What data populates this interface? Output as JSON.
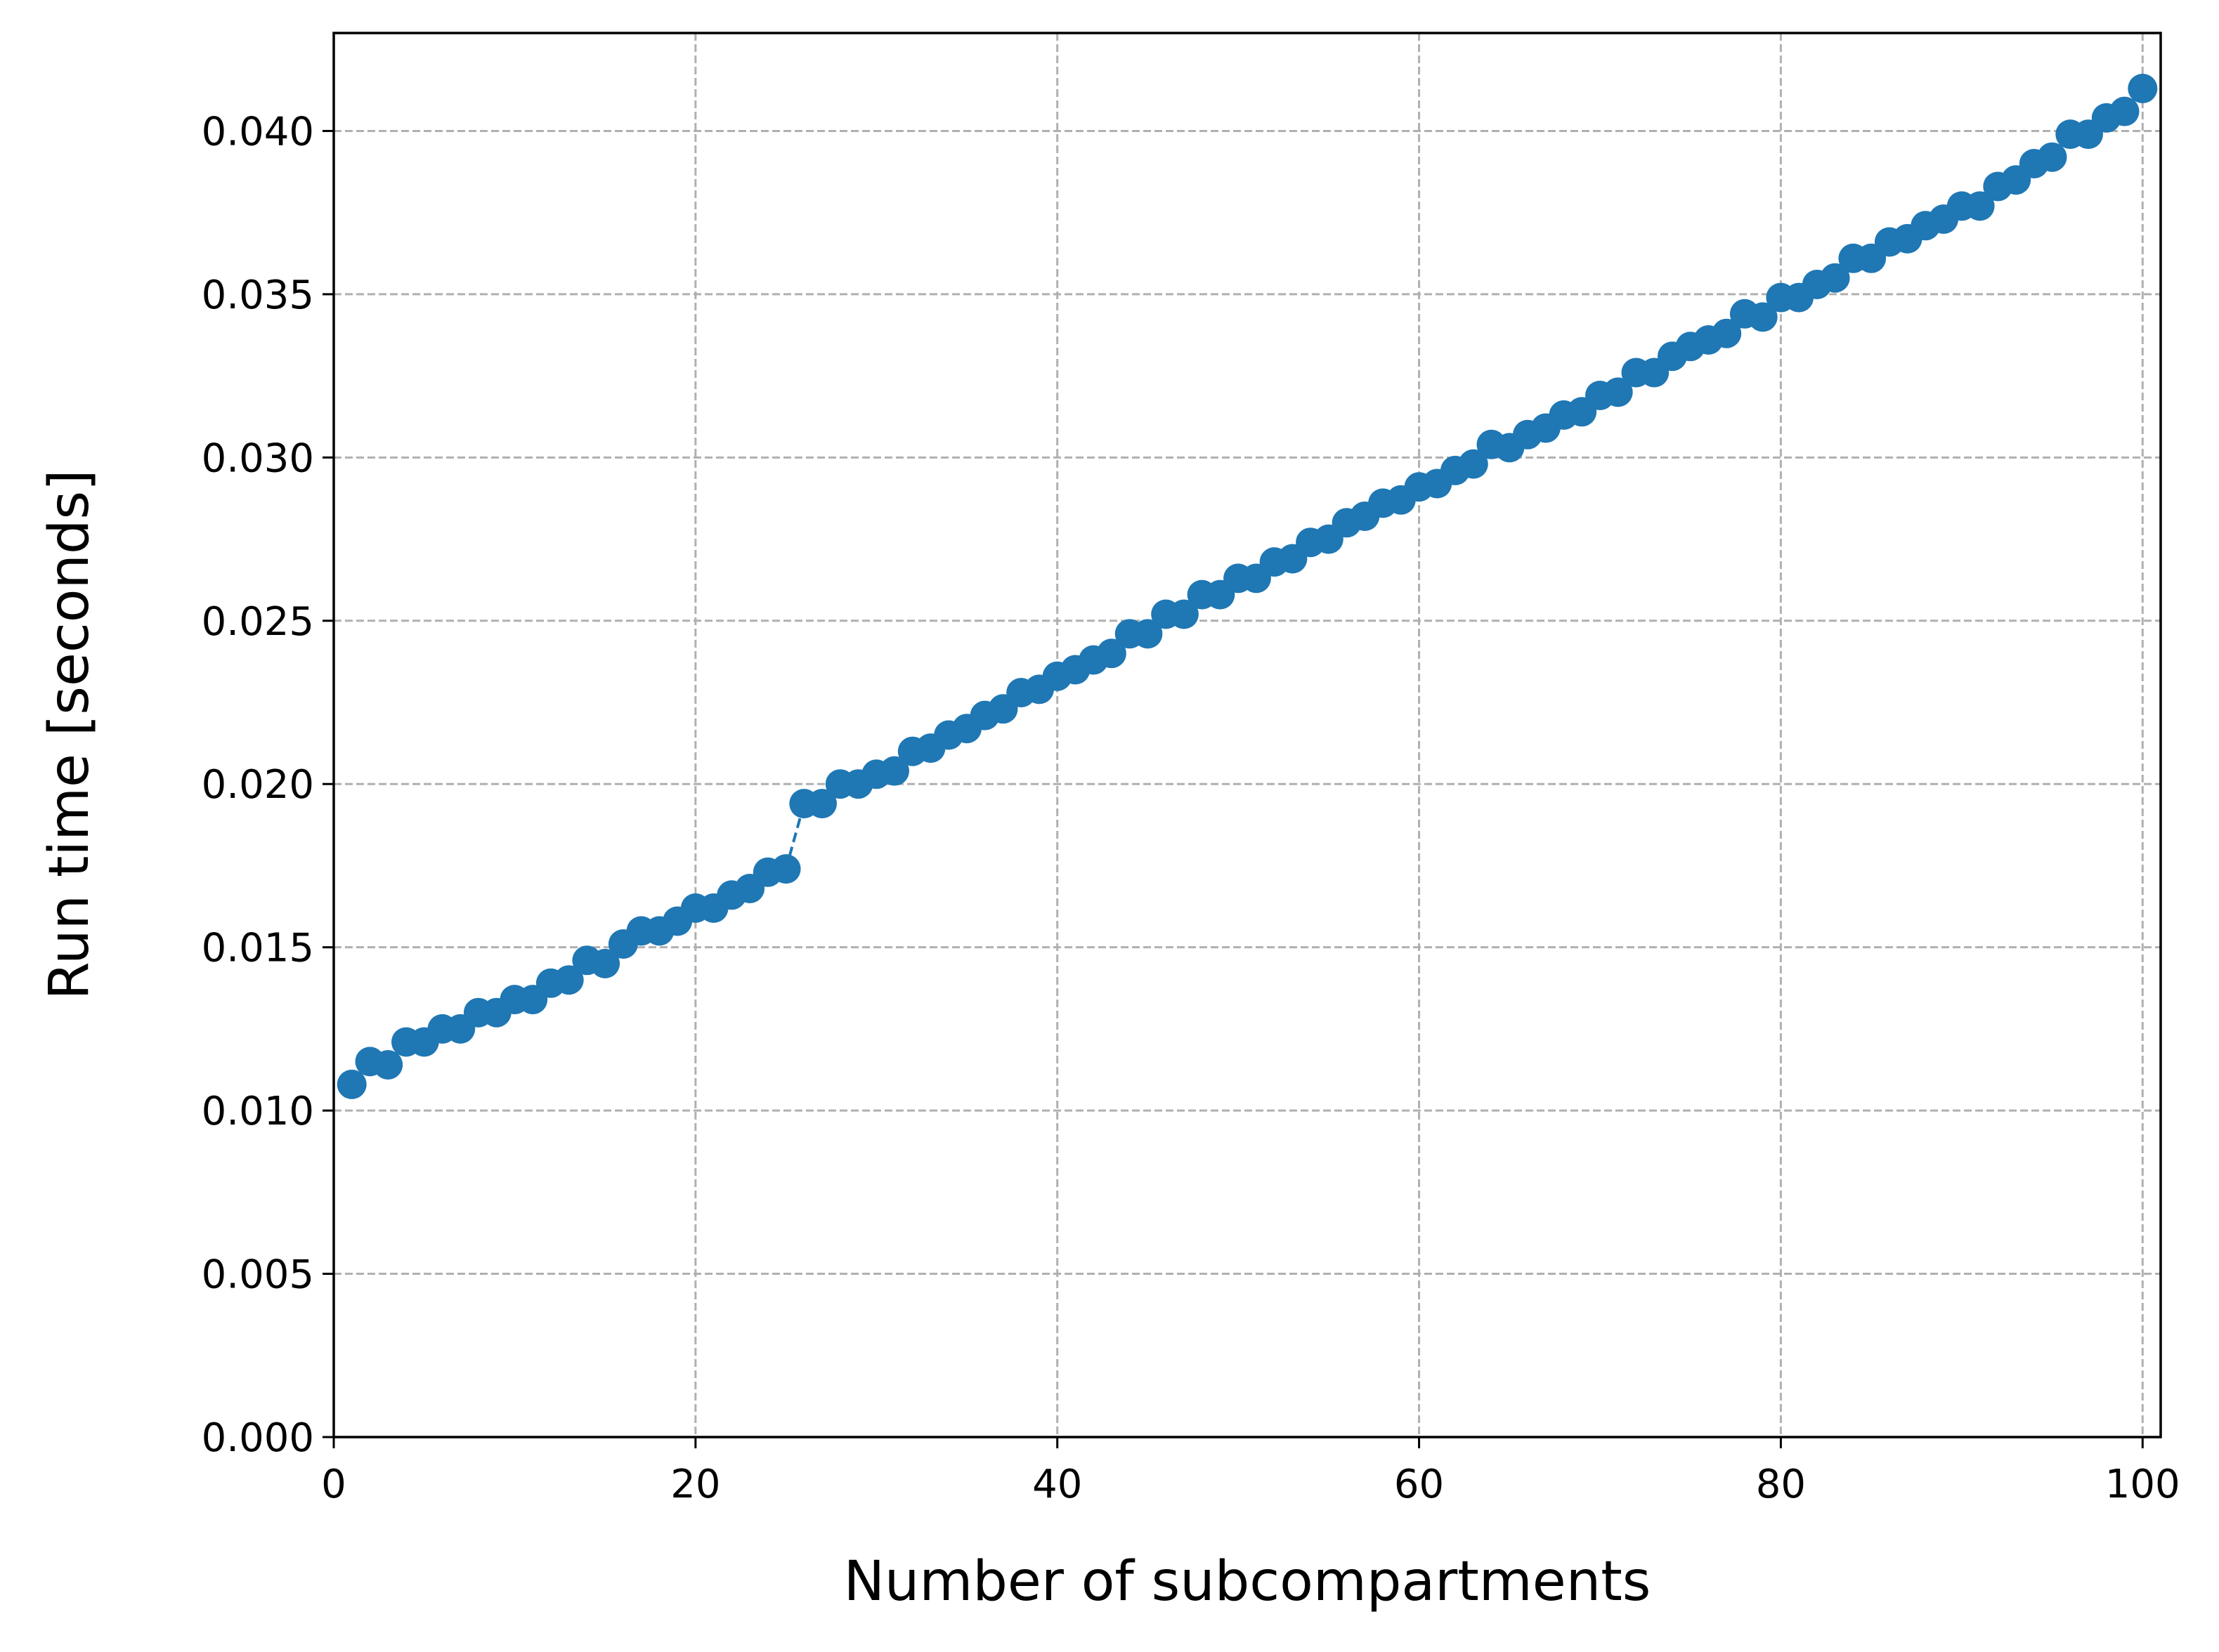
{
  "chart_data": {
    "type": "line",
    "title": "",
    "xlabel": "Number of subcompartments",
    "ylabel": "Run time [seconds]",
    "xlim": [
      0,
      101
    ],
    "ylim": [
      0,
      0.043
    ],
    "x_ticks": [
      0,
      20,
      40,
      60,
      80,
      100
    ],
    "x_tick_labels": [
      "0",
      "20",
      "40",
      "60",
      "80",
      "100"
    ],
    "y_ticks": [
      0,
      0.005,
      0.01,
      0.015,
      0.02,
      0.025,
      0.03,
      0.035,
      0.04
    ],
    "y_tick_labels": [
      "0.000",
      "0.005",
      "0.010",
      "0.015",
      "0.020",
      "0.025",
      "0.030",
      "0.035",
      "0.040"
    ],
    "grid": true,
    "line_style": "dashed",
    "marker": "circle",
    "color": "#1f77b4",
    "series": [
      {
        "x": [
          1,
          2,
          3,
          4,
          5,
          6,
          7,
          8,
          9,
          10,
          11,
          12,
          13,
          14,
          15,
          16,
          17,
          18,
          19,
          20,
          21,
          22,
          23,
          24,
          25,
          26,
          27,
          28,
          29,
          30,
          31,
          32,
          33,
          34,
          35,
          36,
          37,
          38,
          39,
          40,
          41,
          42,
          43,
          44,
          45,
          46,
          47,
          48,
          49,
          50,
          51,
          52,
          53,
          54,
          55,
          56,
          57,
          58,
          59,
          60,
          61,
          62,
          63,
          64,
          65,
          66,
          67,
          68,
          69,
          70,
          71,
          72,
          73,
          74,
          75,
          76,
          77,
          78,
          79,
          80,
          81,
          82,
          83,
          84,
          85,
          86,
          87,
          88,
          89,
          90,
          91,
          92,
          93,
          94,
          95,
          96,
          97,
          98,
          99,
          100
        ],
        "values": [
          0.0108,
          0.0115,
          0.0114,
          0.0121,
          0.0121,
          0.0125,
          0.0125,
          0.013,
          0.013,
          0.0134,
          0.0134,
          0.0139,
          0.014,
          0.0146,
          0.0145,
          0.0151,
          0.0155,
          0.0155,
          0.0158,
          0.0162,
          0.0162,
          0.0166,
          0.0168,
          0.0173,
          0.0174,
          0.0194,
          0.0194,
          0.02,
          0.02,
          0.0203,
          0.0204,
          0.021,
          0.0211,
          0.0215,
          0.0217,
          0.0221,
          0.0223,
          0.0228,
          0.0229,
          0.0233,
          0.0235,
          0.0238,
          0.024,
          0.0246,
          0.0246,
          0.0252,
          0.0252,
          0.0258,
          0.0258,
          0.0263,
          0.0263,
          0.0268,
          0.0269,
          0.0274,
          0.0275,
          0.028,
          0.0282,
          0.0286,
          0.0287,
          0.0291,
          0.0292,
          0.0296,
          0.0298,
          0.0304,
          0.0303,
          0.0307,
          0.0309,
          0.0313,
          0.0314,
          0.0319,
          0.032,
          0.0326,
          0.0326,
          0.0331,
          0.0334,
          0.0336,
          0.0338,
          0.0344,
          0.0343,
          0.0349,
          0.0349,
          0.0353,
          0.0355,
          0.0361,
          0.0361,
          0.0366,
          0.0367,
          0.0371,
          0.0373,
          0.0377,
          0.0377,
          0.0383,
          0.0385,
          0.039,
          0.0392,
          0.0399,
          0.0399,
          0.0404,
          0.0406,
          0.0413
        ]
      }
    ]
  }
}
